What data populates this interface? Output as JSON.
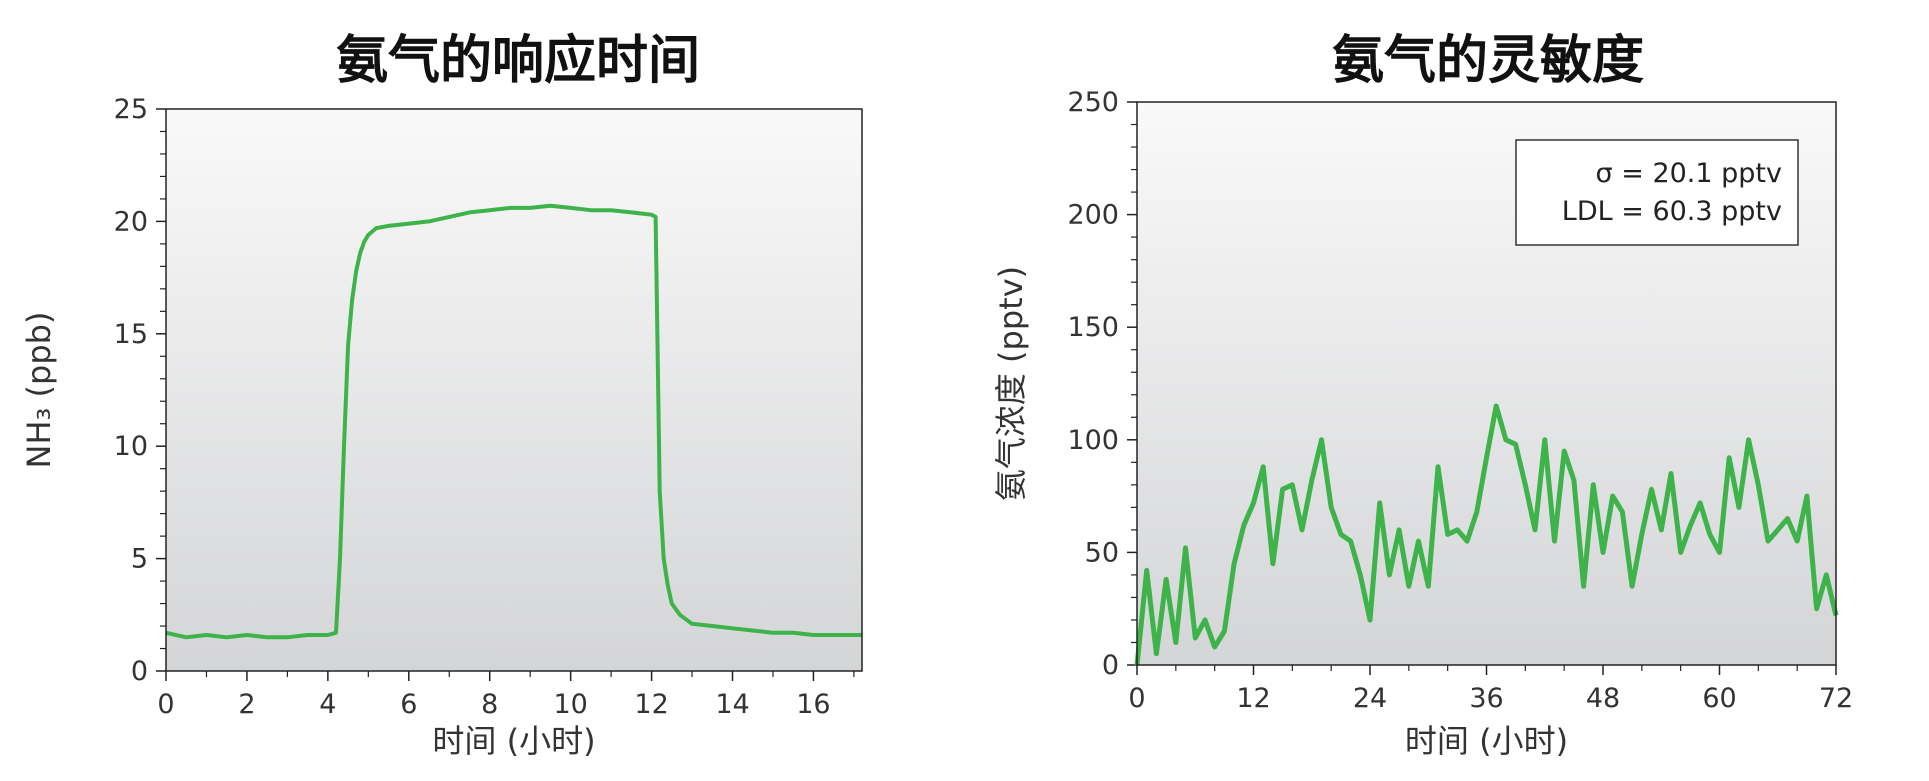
{
  "chart_data": [
    {
      "type": "line",
      "title": "氨气的响应时间",
      "xlabel": "时间 (小时)",
      "ylabel": "NH₃ (ppb)",
      "xlim": [
        0,
        17.2
      ],
      "ylim": [
        0,
        25
      ],
      "xticks": [
        0,
        2,
        4,
        6,
        8,
        10,
        12,
        14,
        16
      ],
      "yticks": [
        0,
        5,
        10,
        15,
        20,
        25
      ],
      "grid": false,
      "series": [
        {
          "color": "#3db34a",
          "x": [
            0,
            0.5,
            1,
            1.5,
            2,
            2.5,
            3,
            3.5,
            4,
            4.2,
            4.3,
            4.4,
            4.5,
            4.6,
            4.7,
            4.8,
            4.9,
            5.0,
            5.2,
            5.5,
            6,
            6.5,
            7,
            7.5,
            8,
            8.5,
            9,
            9.5,
            10,
            10.5,
            11,
            11.5,
            12,
            12.1,
            12.15,
            12.2,
            12.3,
            12.4,
            12.5,
            12.7,
            13,
            13.5,
            14,
            14.5,
            15,
            15.5,
            16,
            16.5,
            17.2
          ],
          "y": [
            1.7,
            1.5,
            1.6,
            1.5,
            1.6,
            1.5,
            1.5,
            1.6,
            1.6,
            1.7,
            5,
            10,
            14.5,
            16.5,
            17.8,
            18.6,
            19.1,
            19.4,
            19.7,
            19.8,
            19.9,
            20.0,
            20.2,
            20.4,
            20.5,
            20.6,
            20.6,
            20.7,
            20.6,
            20.5,
            20.5,
            20.4,
            20.3,
            20.2,
            14,
            8,
            5,
            3.8,
            3,
            2.5,
            2.1,
            2.0,
            1.9,
            1.8,
            1.7,
            1.7,
            1.6,
            1.6,
            1.6
          ]
        }
      ]
    },
    {
      "type": "line",
      "title": "氨气的灵敏度",
      "xlabel": "时间 (小时)",
      "ylabel": "氨气浓度 (pptv)",
      "xlim": [
        0,
        72
      ],
      "ylim": [
        0,
        250
      ],
      "xticks": [
        0,
        12,
        24,
        36,
        48,
        60,
        72
      ],
      "yticks": [
        0,
        50,
        100,
        150,
        200,
        250
      ],
      "grid": false,
      "annotation": [
        "σ = 20.1 pptv",
        "LDL = 60.3 pptv"
      ],
      "series": [
        {
          "color": "#3db34a",
          "x": [
            0,
            1,
            2,
            3,
            4,
            5,
            6,
            7,
            8,
            9,
            10,
            11,
            12,
            13,
            14,
            15,
            16,
            17,
            18,
            19,
            20,
            21,
            22,
            23,
            24,
            25,
            26,
            27,
            28,
            29,
            30,
            31,
            32,
            33,
            34,
            35,
            36,
            37,
            38,
            39,
            40,
            41,
            42,
            43,
            44,
            45,
            46,
            47,
            48,
            49,
            50,
            51,
            52,
            53,
            54,
            55,
            56,
            57,
            58,
            59,
            60,
            61,
            62,
            63,
            64,
            65,
            66,
            67,
            68,
            69,
            70,
            71,
            72
          ],
          "y": [
            0,
            42,
            5,
            38,
            10,
            52,
            12,
            20,
            8,
            15,
            45,
            62,
            72,
            88,
            45,
            78,
            80,
            60,
            82,
            100,
            70,
            58,
            55,
            40,
            20,
            72,
            40,
            60,
            35,
            55,
            35,
            88,
            58,
            60,
            55,
            68,
            92,
            115,
            100,
            98,
            80,
            60,
            100,
            55,
            95,
            82,
            35,
            80,
            50,
            75,
            68,
            35,
            58,
            78,
            60,
            85,
            50,
            62,
            72,
            58,
            50,
            92,
            70,
            100,
            80,
            55,
            60,
            65,
            55,
            75,
            25,
            40,
            22
          ]
        }
      ]
    }
  ]
}
